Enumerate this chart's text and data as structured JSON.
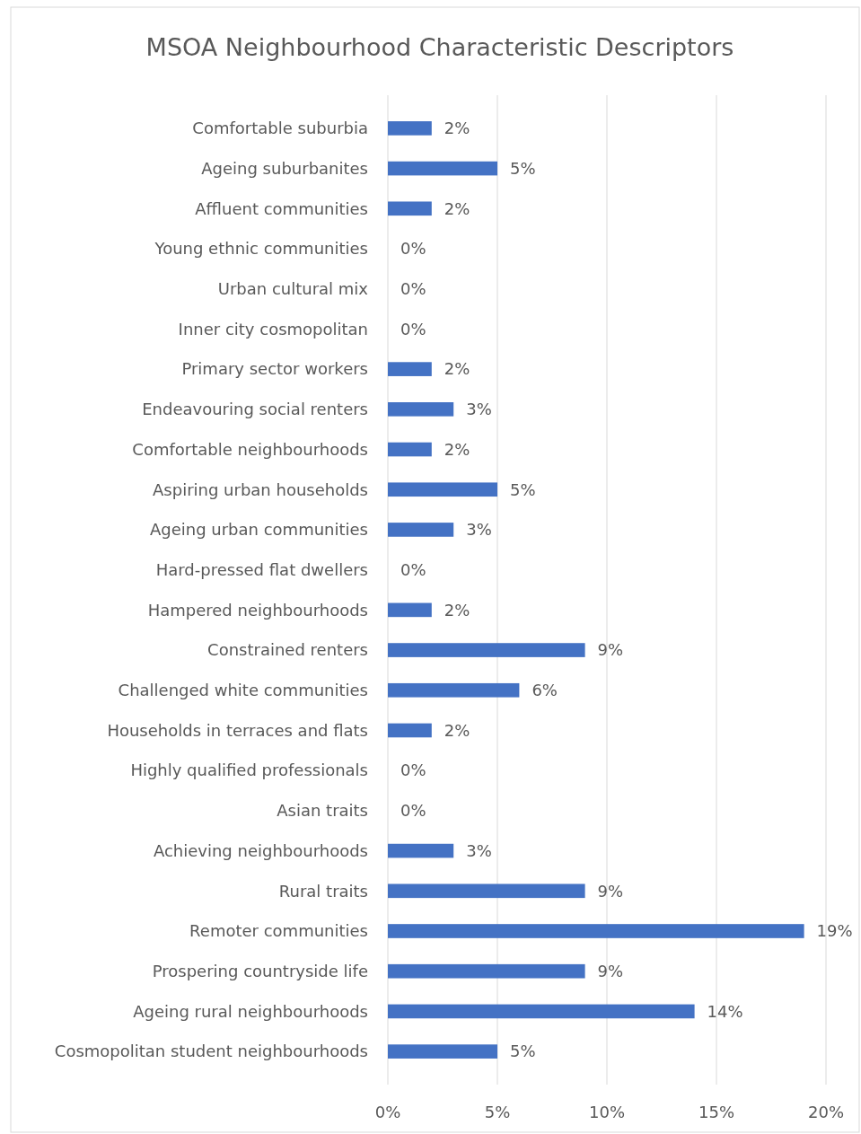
{
  "chart_data": {
    "type": "bar",
    "orientation": "horizontal",
    "title": "MSOA Neighbourhood Characteristic Descriptors",
    "categories": [
      "Comfortable suburbia",
      "Ageing suburbanites",
      "Affluent communities",
      "Young ethnic communities",
      "Urban cultural mix",
      "Inner city cosmopolitan",
      "Primary sector workers",
      "Endeavouring social renters",
      "Comfortable neighbourhoods",
      "Aspiring urban households",
      "Ageing urban communities",
      "Hard-pressed flat dwellers",
      "Hampered neighbourhoods",
      "Constrained renters",
      "Challenged white communities",
      "Households in terraces and flats",
      "Highly qualified professionals",
      "Asian traits",
      "Achieving neighbourhoods",
      "Rural traits",
      "Remoter communities",
      "Prospering countryside life",
      "Ageing rural neighbourhoods",
      "Cosmopolitan student neighbourhoods"
    ],
    "values": [
      2,
      5,
      2,
      0,
      0,
      0,
      2,
      3,
      2,
      5,
      3,
      0,
      2,
      9,
      6,
      2,
      0,
      0,
      3,
      9,
      19,
      9,
      14,
      5
    ],
    "value_labels": [
      "2%",
      "5%",
      "2%",
      "0%",
      "0%",
      "0%",
      "2%",
      "3%",
      "2%",
      "5%",
      "3%",
      "0%",
      "2%",
      "9%",
      "6%",
      "2%",
      "0%",
      "0%",
      "3%",
      "9%",
      "19%",
      "9%",
      "14%",
      "5%"
    ],
    "color": "#4472c4",
    "xlim": [
      0,
      20
    ],
    "xticks": [
      {
        "value": 0,
        "label": "0%"
      },
      {
        "value": 5,
        "label": "5%"
      },
      {
        "value": 10,
        "label": "10%"
      },
      {
        "value": 15,
        "label": "15%"
      },
      {
        "value": 20,
        "label": "20%"
      }
    ],
    "grid": "x"
  }
}
